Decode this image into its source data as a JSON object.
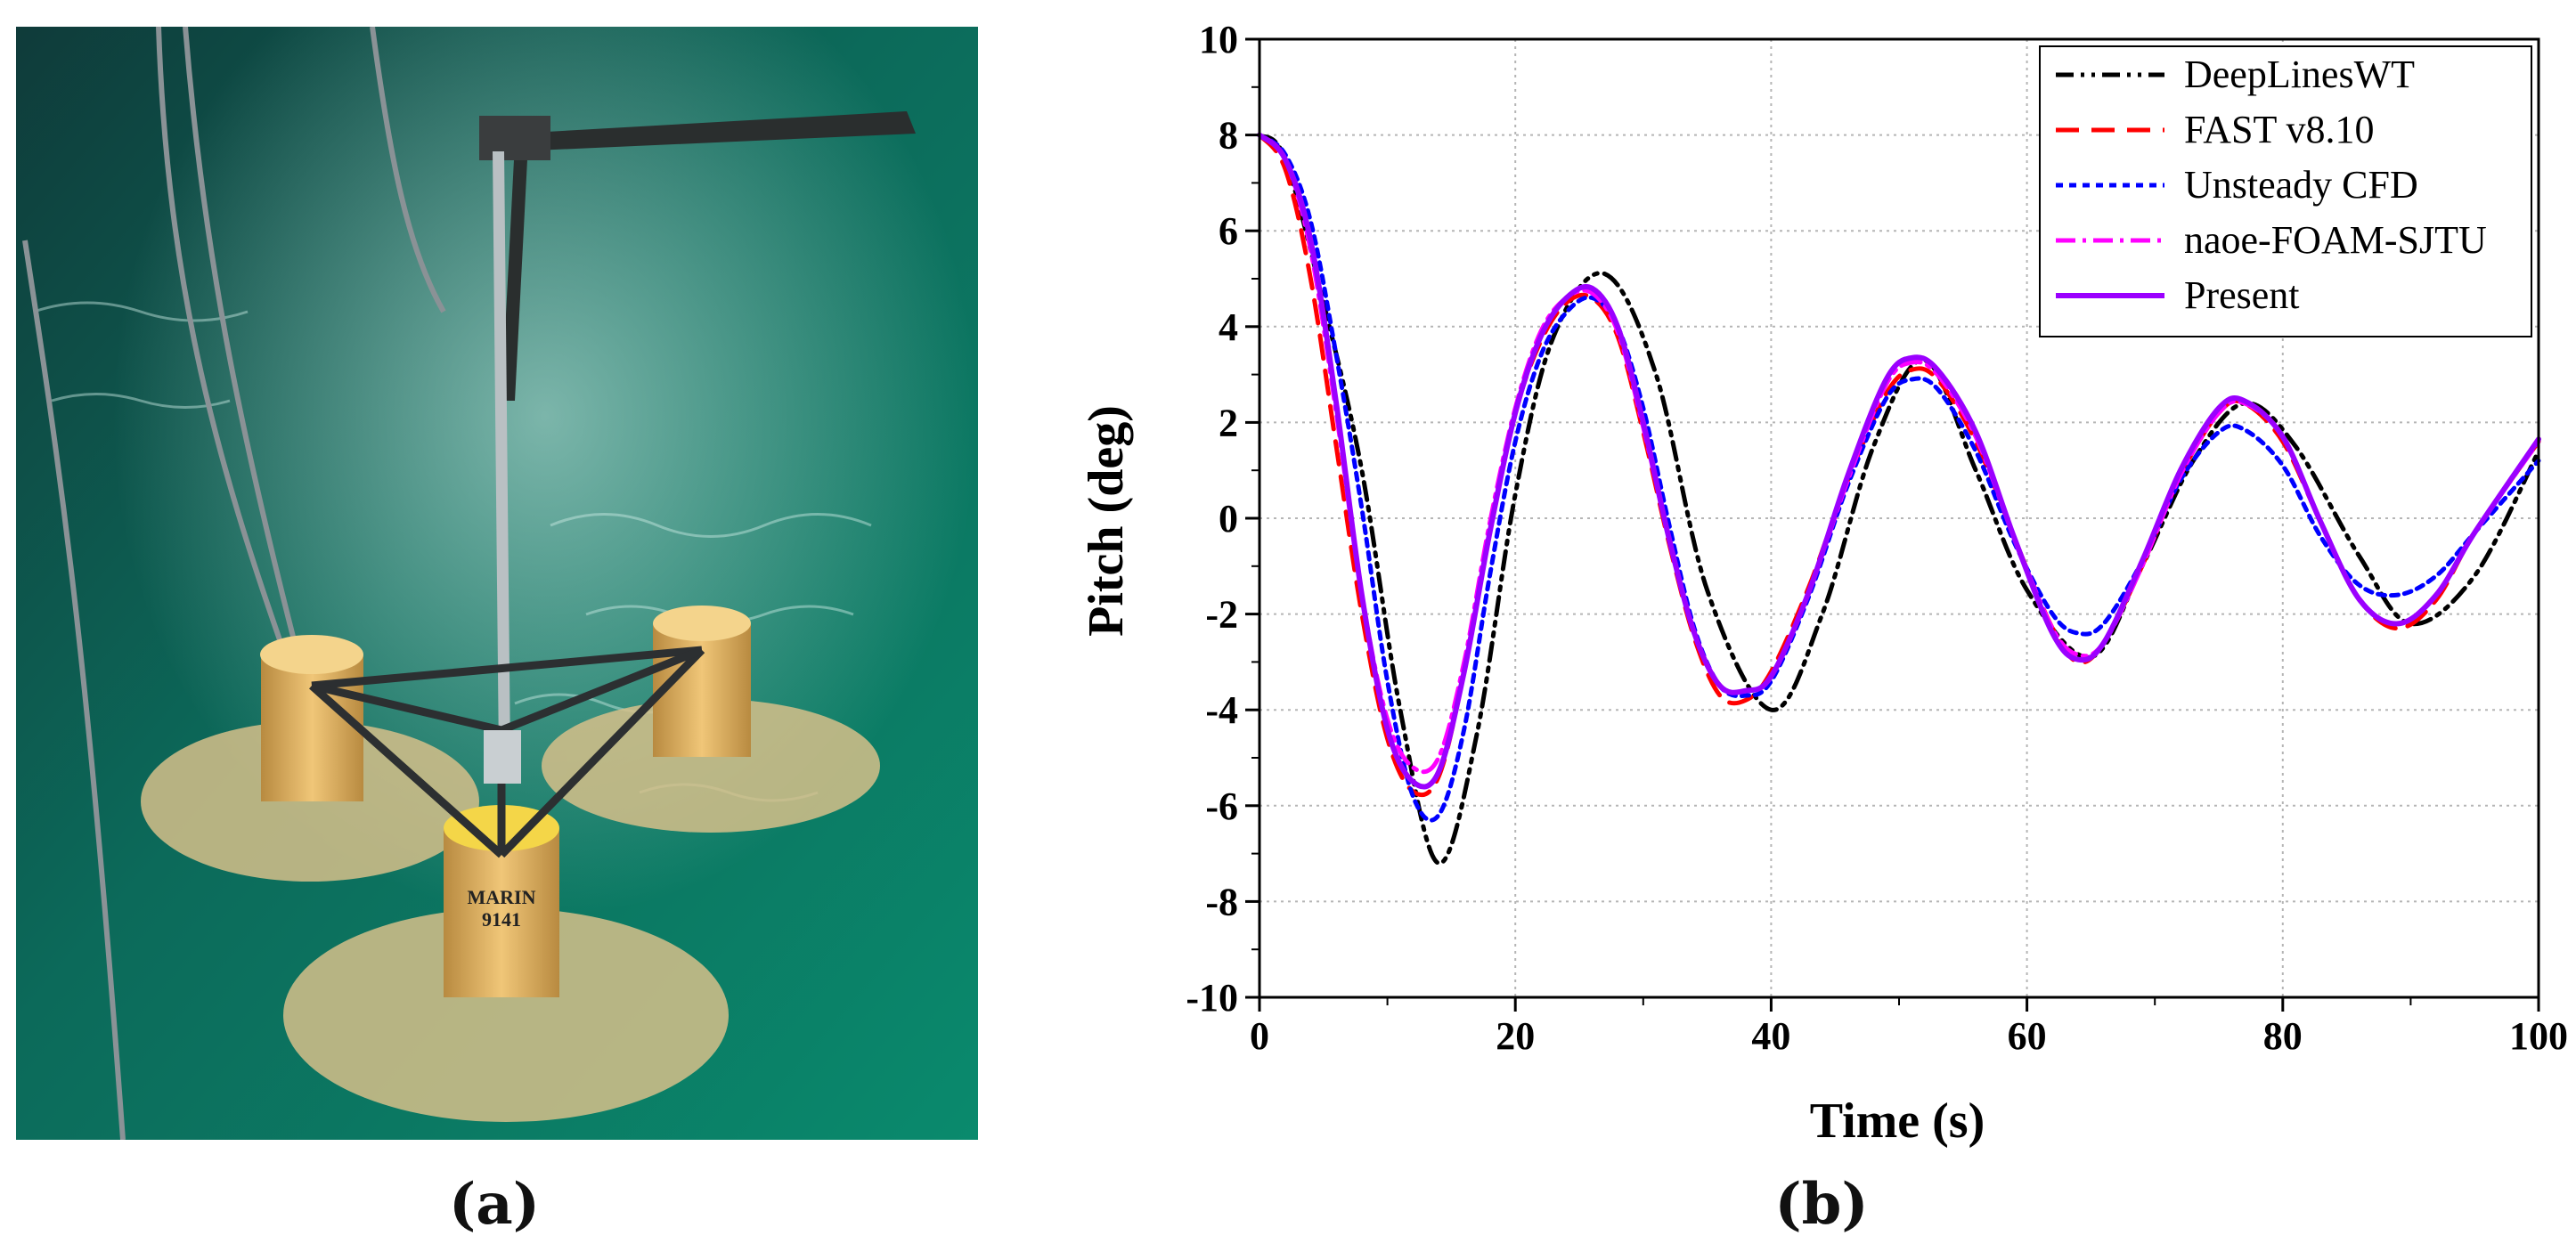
{
  "panels": {
    "a_label": "(a)",
    "b_label": "(b)"
  },
  "photo": {
    "float_label_line1": "MARIN",
    "float_label_line2": "9141"
  },
  "chart_data": {
    "type": "line",
    "xlabel": "Time (s)",
    "ylabel": "Pitch (deg)",
    "xlim": [
      0,
      100
    ],
    "ylim": [
      -10,
      10
    ],
    "xticks": [
      0,
      20,
      40,
      60,
      80,
      100
    ],
    "yticks": [
      -10,
      -8,
      -6,
      -4,
      -2,
      0,
      2,
      4,
      6,
      8,
      10
    ],
    "grid": true,
    "legend_position": "top-right",
    "series": [
      {
        "name": "DeepLinesWT",
        "color": "#000000",
        "style": "dash-dot-dot",
        "x": [
          0,
          2,
          5,
          8,
          11,
          14,
          17,
          20,
          23,
          27,
          31,
          35,
          40,
          44,
          48,
          52,
          56,
          60,
          65,
          69,
          73,
          77,
          81,
          86,
          90,
          95,
          100
        ],
        "y": [
          8,
          7.5,
          4.5,
          1.0,
          -4.0,
          -7.2,
          -4.5,
          0.5,
          3.8,
          5.1,
          3.0,
          -1.5,
          -4.0,
          -2.0,
          1.5,
          3.3,
          1.0,
          -1.5,
          -2.9,
          -1.0,
          1.2,
          2.4,
          1.5,
          -0.8,
          -2.2,
          -1.2,
          1.4
        ]
      },
      {
        "name": "FAST v8.10",
        "color": "#ff0000",
        "style": "dash",
        "x": [
          0,
          2,
          4,
          6,
          8,
          10,
          12,
          14,
          16,
          18,
          20,
          22,
          24,
          26,
          28,
          30,
          32,
          34,
          36,
          38,
          40,
          43,
          46,
          49,
          51,
          53,
          56,
          59,
          62,
          64,
          66,
          69,
          72,
          75,
          77,
          80,
          83,
          86,
          89,
          92,
          95,
          100
        ],
        "y": [
          8,
          7.3,
          5.0,
          1.5,
          -2.0,
          -4.6,
          -5.7,
          -5.4,
          -3.2,
          -0.3,
          2.2,
          3.7,
          4.5,
          4.6,
          3.8,
          1.8,
          -0.5,
          -2.5,
          -3.7,
          -3.8,
          -3.2,
          -1.4,
          0.8,
          2.6,
          3.1,
          2.9,
          1.6,
          -0.4,
          -2.3,
          -3.0,
          -2.6,
          -1.0,
          0.9,
          2.2,
          2.4,
          1.6,
          -0.1,
          -1.7,
          -2.3,
          -1.7,
          -0.3,
          1.6
        ]
      },
      {
        "name": "Unsteady CFD",
        "color": "#0000ff",
        "style": "dot",
        "x": [
          0,
          2,
          4,
          6,
          8,
          10,
          12,
          14,
          16,
          18,
          20,
          22,
          24,
          26,
          28,
          30,
          32,
          34,
          36,
          38,
          40,
          43,
          46,
          49,
          51,
          53,
          56,
          59,
          62,
          64,
          66,
          69,
          72,
          75,
          77,
          80,
          83,
          86,
          89,
          92,
          95,
          100
        ],
        "y": [
          8,
          7.6,
          6.2,
          3.4,
          0.2,
          -3.4,
          -5.8,
          -6.2,
          -4.4,
          -1.2,
          1.6,
          3.4,
          4.3,
          4.6,
          4.0,
          2.3,
          -0.1,
          -2.3,
          -3.5,
          -3.7,
          -3.4,
          -1.6,
          0.7,
          2.5,
          2.9,
          2.7,
          1.4,
          -0.5,
          -2.0,
          -2.4,
          -2.2,
          -0.9,
          0.8,
          1.8,
          1.85,
          1.1,
          -0.4,
          -1.4,
          -1.6,
          -1.2,
          -0.3,
          1.2
        ]
      },
      {
        "name": "naoe-FOAM-SJTU",
        "color": "#ff00ff",
        "style": "dash-dot",
        "x": [
          0,
          2,
          4,
          6,
          8,
          10,
          12,
          14,
          16,
          18,
          20,
          22,
          24,
          26,
          28,
          30,
          32,
          34,
          36,
          38,
          40,
          43,
          46,
          49,
          51,
          53,
          56,
          59,
          62,
          64,
          66,
          69,
          72,
          75,
          77,
          80,
          83,
          86,
          89,
          92,
          95,
          100
        ],
        "y": [
          8,
          7.5,
          5.6,
          2.2,
          -1.6,
          -4.2,
          -5.2,
          -5.0,
          -3.0,
          -0.1,
          2.3,
          3.9,
          4.6,
          4.7,
          3.9,
          1.9,
          -0.4,
          -2.4,
          -3.5,
          -3.6,
          -3.3,
          -1.5,
          0.8,
          2.8,
          3.25,
          3.0,
          1.7,
          -0.4,
          -2.3,
          -2.85,
          -2.6,
          -1.0,
          0.9,
          2.2,
          2.4,
          1.7,
          -0.1,
          -1.7,
          -2.2,
          -1.6,
          -0.3,
          1.6
        ]
      },
      {
        "name": "Present",
        "color": "#9b00ff",
        "style": "solid",
        "x": [
          0,
          2,
          4,
          6,
          8,
          10,
          12,
          14,
          16,
          18,
          20,
          22,
          24,
          26,
          28,
          30,
          32,
          34,
          36,
          38,
          40,
          43,
          46,
          49,
          51,
          53,
          56,
          59,
          62,
          64,
          66,
          69,
          72,
          75,
          77,
          80,
          83,
          86,
          89,
          92,
          95,
          100
        ],
        "y": [
          8,
          7.5,
          5.8,
          2.4,
          -1.6,
          -4.4,
          -5.5,
          -5.3,
          -3.2,
          -0.3,
          2.2,
          3.8,
          4.6,
          4.8,
          4.0,
          2.0,
          -0.4,
          -2.4,
          -3.5,
          -3.6,
          -3.3,
          -1.5,
          0.9,
          2.9,
          3.35,
          3.1,
          1.8,
          -0.4,
          -2.4,
          -2.95,
          -2.6,
          -0.9,
          1.0,
          2.3,
          2.45,
          1.7,
          -0.1,
          -1.7,
          -2.2,
          -1.6,
          -0.3,
          1.65
        ]
      }
    ]
  }
}
